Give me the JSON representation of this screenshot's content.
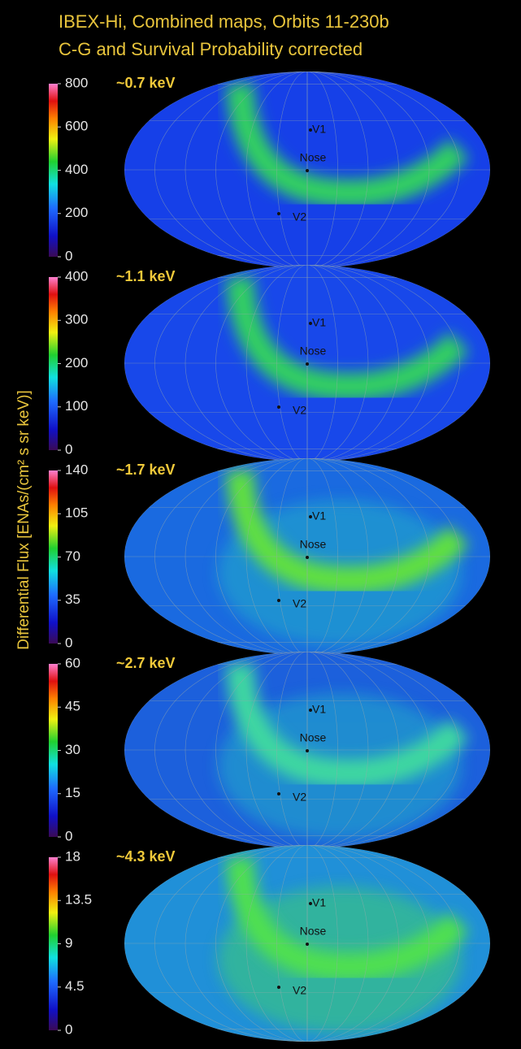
{
  "title_lines": [
    "IBEX-Hi, Combined maps, Orbits 11-230b",
    "C-G and Survival Probability corrected"
  ],
  "colorbar_label": "Differential Flux [ENAs/(cm² s sr keV)]",
  "panels": [
    {
      "energy": "~0.7 keV",
      "colorbar": {
        "lim": [
          0,
          800
        ],
        "ticks": [
          0,
          200,
          400,
          600,
          800
        ]
      },
      "markers": [
        "V1",
        "Nose",
        "V2"
      ]
    },
    {
      "energy": "~1.1 keV",
      "colorbar": {
        "lim": [
          0,
          400
        ],
        "ticks": [
          0,
          100,
          200,
          300,
          400
        ]
      },
      "markers": [
        "V1",
        "Nose",
        "V2"
      ]
    },
    {
      "energy": "~1.7 keV",
      "colorbar": {
        "lim": [
          0,
          140
        ],
        "ticks": [
          0,
          35,
          70,
          105,
          140
        ]
      },
      "markers": [
        "V1",
        "Nose",
        "V2"
      ]
    },
    {
      "energy": "~2.7 keV",
      "colorbar": {
        "lim": [
          0,
          60
        ],
        "ticks": [
          0,
          15,
          30,
          45,
          60
        ]
      },
      "markers": [
        "V1",
        "Nose",
        "V2"
      ]
    },
    {
      "energy": "~4.3 keV",
      "colorbar": {
        "lim": [
          0,
          18
        ],
        "ticks": [
          0,
          4.5,
          9,
          13.5,
          18
        ]
      },
      "markers": [
        "V1",
        "Nose",
        "V2"
      ]
    }
  ]
}
